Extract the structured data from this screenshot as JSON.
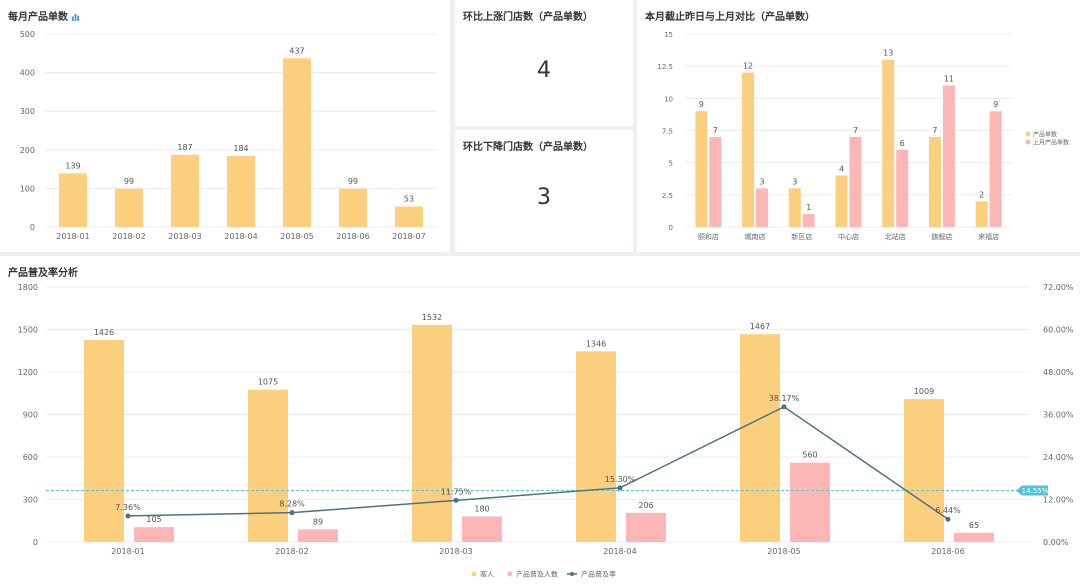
{
  "colors": {
    "primary": "#fccf7e",
    "secondary": "#fcb6b5",
    "line": "#4b7184",
    "avgLine": "#5bc6d6",
    "avgBadge": "#4fc3d8",
    "grid": "#ececec",
    "axisText": "#666666"
  },
  "panel_monthly": {
    "title": "每月产品单数",
    "title_icon": "bar-chart-icon"
  },
  "panel_up": {
    "title": "环比上涨门店数（产品单数）",
    "value": "4"
  },
  "panel_down": {
    "title": "环比下降门店数（产品单数）",
    "value": "3"
  },
  "panel_store": {
    "title": "本月截止昨日与上月对比（产品单数）"
  },
  "panel_rate": {
    "title": "产品普及率分析"
  },
  "chart_data": [
    {
      "type": "bar",
      "categories": [
        "2018-01",
        "2018-02",
        "2018-03",
        "2018-04",
        "2018-05",
        "2018-06",
        "2018-07"
      ],
      "values": [
        139,
        99,
        187,
        184,
        437,
        99,
        53
      ],
      "yticks": [
        "0",
        "100",
        "200",
        "300",
        "400",
        "500"
      ],
      "ylim": [
        0,
        500
      ],
      "grid": true
    },
    {
      "type": "bar",
      "categories": [
        "颐和店",
        "城南店",
        "新区店",
        "中心店",
        "北站店",
        "旗舰店",
        "来福店"
      ],
      "series": [
        {
          "name": "产品单数",
          "values": [
            9,
            12,
            3,
            4,
            13,
            7,
            2
          ]
        },
        {
          "name": "上月产品单数",
          "values": [
            7,
            3,
            1,
            7,
            6,
            11,
            9
          ]
        }
      ],
      "yticks": [
        "0",
        "2.5",
        "5",
        "7.5",
        "10",
        "12.5",
        "15"
      ],
      "ylim": [
        0,
        15
      ],
      "legend": "right",
      "grid": true
    },
    {
      "type": "bar",
      "categories": [
        "2018-01",
        "2018-02",
        "2018-03",
        "2018-04",
        "2018-05",
        "2018-06"
      ],
      "series": [
        {
          "name": "客人",
          "values": [
            1426,
            1075,
            1532,
            1346,
            1467,
            1009
          ]
        },
        {
          "name": "产品普及人数",
          "values": [
            105,
            89,
            180,
            206,
            560,
            65
          ]
        }
      ],
      "line_series": {
        "name": "产品普及率",
        "values": [
          7.36,
          8.28,
          11.75,
          15.3,
          38.17,
          6.44
        ],
        "labels": [
          "7.36%",
          "8.28%",
          "11.75%",
          "15.30%",
          "38.17%",
          "6.44%"
        ]
      },
      "average": {
        "value": 14.55,
        "label": "14.55%"
      },
      "yticks_left": [
        "0",
        "300",
        "600",
        "900",
        "1200",
        "1500",
        "1800"
      ],
      "ylim_left": [
        0,
        1800
      ],
      "yticks_right": [
        "0.00%",
        "12.00%",
        "24.00%",
        "36.00%",
        "48.00%",
        "60.00%",
        "72.00%"
      ],
      "ylim_right": [
        0,
        72
      ],
      "legend": "bottom",
      "grid": true
    }
  ]
}
